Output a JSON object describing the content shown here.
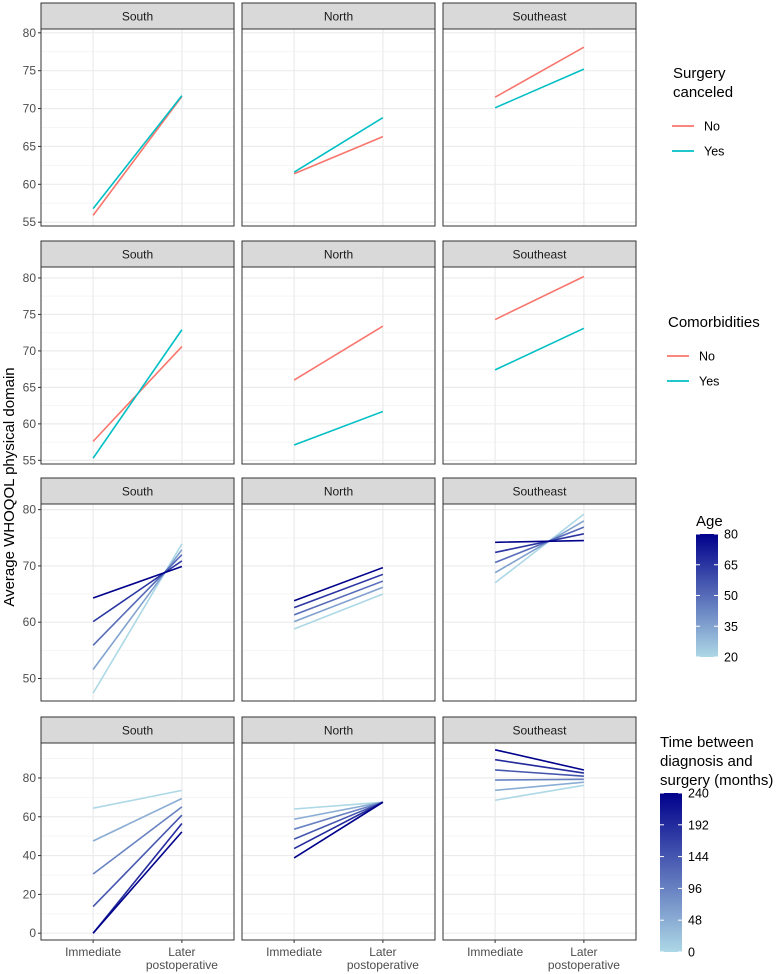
{
  "ylabel": "Average WHOQOL physical domain",
  "x_categories": [
    "Immediate",
    "Later postoperative"
  ],
  "x_tick_lines": [
    [
      "Immediate"
    ],
    [
      "Later",
      "postoperative"
    ]
  ],
  "facets": [
    "South",
    "North",
    "Southeast"
  ],
  "colors": {
    "no": "#F8766D",
    "yes": "#00BFC4",
    "grad_low": "#ADD8E6",
    "grad_high": "#00008B",
    "strip_fill": "#D9D9D9",
    "grid_major": "#EBEBEB",
    "grid_minor": "#F5F5F5",
    "border": "#333333",
    "axis_text": "#4D4D4D"
  },
  "chart_data": [
    {
      "type": "line",
      "title": "Surgery canceled",
      "legend_type": "discrete",
      "legend_title_lines": [
        "Surgery",
        "canceled"
      ],
      "ylim": [
        54.5,
        80.5
      ],
      "yticks": [
        55,
        60,
        65,
        70,
        75,
        80
      ],
      "panels": [
        {
          "facet": "South",
          "series": [
            {
              "name": "No",
              "values": [
                55.9,
                71.6
              ]
            },
            {
              "name": "Yes",
              "values": [
                56.8,
                71.7
              ]
            }
          ]
        },
        {
          "facet": "North",
          "series": [
            {
              "name": "No",
              "values": [
                61.4,
                66.3
              ]
            },
            {
              "name": "Yes",
              "values": [
                61.6,
                68.8
              ]
            }
          ]
        },
        {
          "facet": "Southeast",
          "series": [
            {
              "name": "No",
              "values": [
                71.5,
                78.1
              ]
            },
            {
              "name": "Yes",
              "values": [
                70.1,
                75.2
              ]
            }
          ]
        }
      ],
      "legend": [
        {
          "label": "No"
        },
        {
          "label": "Yes"
        }
      ]
    },
    {
      "type": "line",
      "title": "Comorbidities",
      "legend_type": "discrete",
      "legend_title_lines": [
        "Comorbidities"
      ],
      "ylim": [
        54.5,
        81.5
      ],
      "yticks": [
        55,
        60,
        65,
        70,
        75,
        80
      ],
      "panels": [
        {
          "facet": "South",
          "series": [
            {
              "name": "No",
              "values": [
                57.6,
                70.6
              ]
            },
            {
              "name": "Yes",
              "values": [
                55.3,
                72.9
              ]
            }
          ]
        },
        {
          "facet": "North",
          "series": [
            {
              "name": "No",
              "values": [
                66.0,
                73.4
              ]
            },
            {
              "name": "Yes",
              "values": [
                57.1,
                61.7
              ]
            }
          ]
        },
        {
          "facet": "Southeast",
          "series": [
            {
              "name": "No",
              "values": [
                74.3,
                80.2
              ]
            },
            {
              "name": "Yes",
              "values": [
                67.4,
                73.1
              ]
            }
          ]
        }
      ],
      "legend": [
        {
          "label": "No"
        },
        {
          "label": "Yes"
        }
      ]
    },
    {
      "type": "line",
      "title": "Age",
      "legend_type": "gradient",
      "legend_title_lines": [
        "Age"
      ],
      "ylim": [
        46,
        81
      ],
      "yticks": [
        50,
        60,
        70,
        80
      ],
      "colorbar": {
        "min": 20,
        "max": 80,
        "ticks": [
          20,
          35,
          50,
          65,
          80
        ]
      },
      "panels": [
        {
          "facet": "South",
          "series": [
            {
              "level": 20,
              "values": [
                47.4,
                73.9
              ]
            },
            {
              "level": 35,
              "values": [
                51.6,
                72.9
              ]
            },
            {
              "level": 50,
              "values": [
                55.9,
                72.0
              ]
            },
            {
              "level": 65,
              "values": [
                60.1,
                70.9
              ]
            },
            {
              "level": 80,
              "values": [
                64.3,
                69.9
              ]
            }
          ]
        },
        {
          "facet": "North",
          "series": [
            {
              "level": 20,
              "values": [
                58.8,
                65.0
              ]
            },
            {
              "level": 35,
              "values": [
                60.1,
                66.2
              ]
            },
            {
              "level": 50,
              "values": [
                61.3,
                67.3
              ]
            },
            {
              "level": 65,
              "values": [
                62.6,
                68.5
              ]
            },
            {
              "level": 80,
              "values": [
                63.8,
                69.7
              ]
            }
          ]
        },
        {
          "facet": "Southeast",
          "series": [
            {
              "level": 20,
              "values": [
                67.0,
                79.2
              ]
            },
            {
              "level": 35,
              "values": [
                68.8,
                78.0
              ]
            },
            {
              "level": 50,
              "values": [
                70.6,
                76.9
              ]
            },
            {
              "level": 65,
              "values": [
                72.4,
                75.7
              ]
            },
            {
              "level": 80,
              "values": [
                74.2,
                74.5
              ]
            }
          ]
        }
      ]
    },
    {
      "type": "line",
      "title": "Time between diagnosis and surgery (months)",
      "legend_type": "gradient",
      "legend_title_lines": [
        "Time between",
        "diagnosis and",
        "surgery (months)"
      ],
      "ylim": [
        -3.5,
        98
      ],
      "yticks": [
        0,
        20,
        40,
        60,
        80
      ],
      "colorbar": {
        "min": 0,
        "max": 240,
        "ticks": [
          0,
          48,
          96,
          144,
          192,
          240
        ]
      },
      "panels": [
        {
          "facet": "South",
          "series": [
            {
              "level": 0,
              "values": [
                64.4,
                73.6
              ]
            },
            {
              "level": 48,
              "values": [
                47.5,
                69.4
              ]
            },
            {
              "level": 96,
              "values": [
                30.5,
                65.1
              ]
            },
            {
              "level": 144,
              "values": [
                13.7,
                60.8
              ]
            },
            {
              "level": 192,
              "values": [
                0.0,
                56.5
              ]
            },
            {
              "level": 240,
              "values": [
                0.0,
                52.2
              ]
            }
          ]
        },
        {
          "facet": "North",
          "series": [
            {
              "level": 0,
              "values": [
                64.0,
                67.5
              ]
            },
            {
              "level": 48,
              "values": [
                58.7,
                67.5
              ]
            },
            {
              "level": 96,
              "values": [
                53.6,
                67.5
              ]
            },
            {
              "level": 144,
              "values": [
                48.5,
                67.5
              ]
            },
            {
              "level": 192,
              "values": [
                43.6,
                67.5
              ]
            },
            {
              "level": 240,
              "values": [
                38.8,
                67.5
              ]
            }
          ]
        },
        {
          "facet": "Southeast",
          "series": [
            {
              "level": 0,
              "values": [
                68.5,
                76.2
              ]
            },
            {
              "level": 48,
              "values": [
                73.6,
                77.8
              ]
            },
            {
              "level": 96,
              "values": [
                78.9,
                79.3
              ]
            },
            {
              "level": 144,
              "values": [
                84.1,
                80.9
              ]
            },
            {
              "level": 192,
              "values": [
                89.4,
                82.5
              ]
            },
            {
              "level": 240,
              "values": [
                94.5,
                84.1
              ]
            }
          ]
        }
      ]
    }
  ]
}
